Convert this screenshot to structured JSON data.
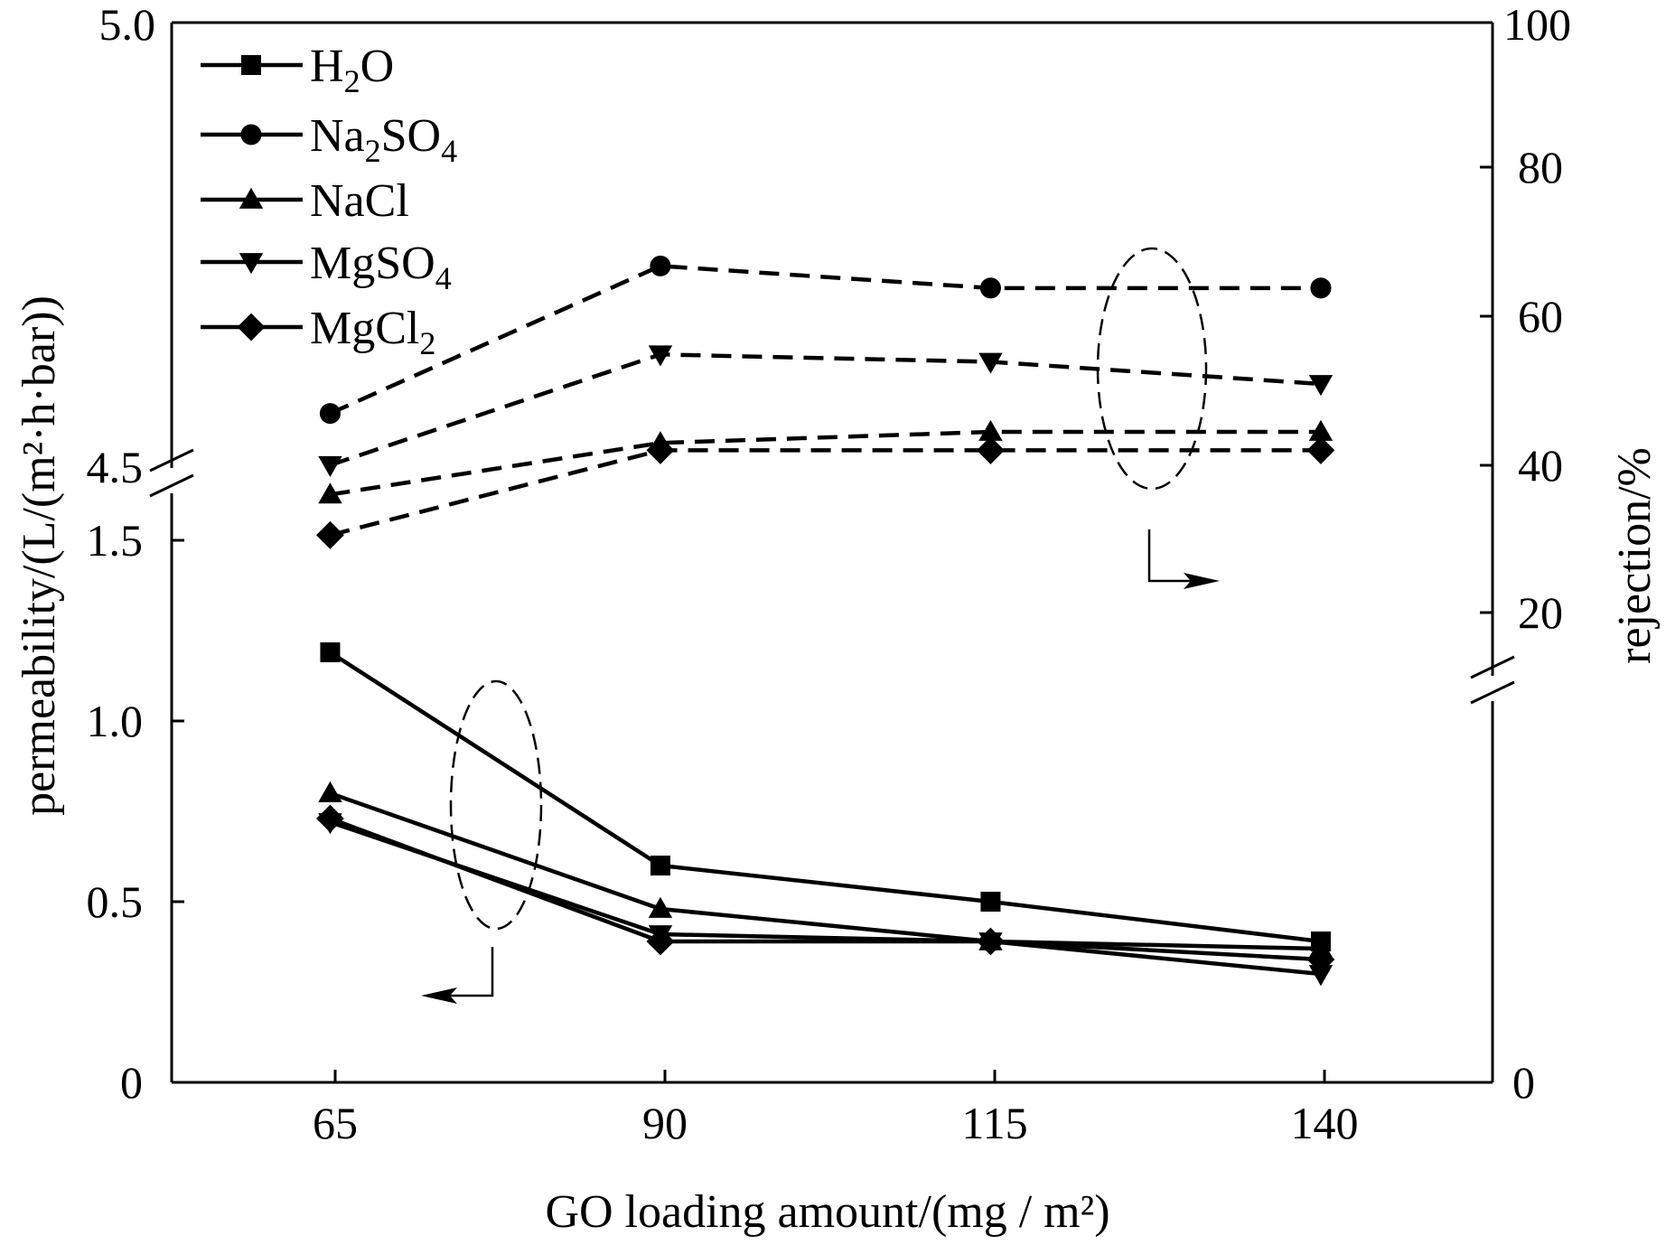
{
  "chart_data": {
    "type": "line",
    "x": [
      65,
      90,
      115,
      140
    ],
    "xlabel": "GO loading amount/(mg / m²)",
    "ylabel_left": "permeability/(L/(m²·h·bar))",
    "ylabel_right": "rejection/%",
    "xlim": [
      53,
      153
    ],
    "x_ticks": [
      "65",
      "90",
      "115",
      "140"
    ],
    "y_left_ticks_lower": [
      "0",
      "0.5",
      "1.0",
      "1.5"
    ],
    "y_left_ticks_upper": [
      "4.5",
      "5.0"
    ],
    "y_left_range_lower": [
      0,
      1.5
    ],
    "y_left_range_upper": [
      4.5,
      5.0
    ],
    "y_right_ticks_lower": [
      "0"
    ],
    "y_right_ticks_upper": [
      "20",
      "40",
      "60",
      "80",
      "100"
    ],
    "y_right_range_upper": [
      20,
      100
    ],
    "permeability_series": [
      {
        "name": "H2O",
        "marker": "square",
        "values": [
          1.19,
          0.6,
          0.5,
          0.39
        ]
      },
      {
        "name": "NaCl",
        "marker": "triangle-up",
        "values": [
          0.8,
          0.48,
          0.39,
          0.37
        ]
      },
      {
        "name": "MgSO4",
        "marker": "triangle-down",
        "values": [
          0.72,
          0.41,
          0.39,
          0.3
        ]
      },
      {
        "name": "MgCl2",
        "marker": "diamond",
        "values": [
          0.73,
          0.39,
          0.39,
          0.34
        ]
      }
    ],
    "rejection_series": [
      {
        "name": "Na2SO4",
        "marker": "circle",
        "values": [
          47,
          67,
          64,
          64
        ]
      },
      {
        "name": "MgSO4",
        "marker": "triangle-down",
        "values": [
          40,
          55,
          54,
          51
        ]
      },
      {
        "name": "NaCl",
        "marker": "triangle-up",
        "values": [
          36,
          43,
          44.5,
          44.5
        ]
      },
      {
        "name": "MgCl2",
        "marker": "diamond",
        "values": [
          30.5,
          42,
          42,
          42
        ]
      }
    ],
    "legend": [
      {
        "marker": "square",
        "base": "H",
        "sub": "2",
        "tail": "O"
      },
      {
        "marker": "circle",
        "base": "Na",
        "sub": "2",
        "tail": "SO",
        "sub2": "4"
      },
      {
        "marker": "triangle-up",
        "base": "NaCl"
      },
      {
        "marker": "triangle-down",
        "base": "MgSO",
        "sub": "4"
      },
      {
        "marker": "diamond",
        "base": "MgCl",
        "sub": "2"
      }
    ]
  }
}
